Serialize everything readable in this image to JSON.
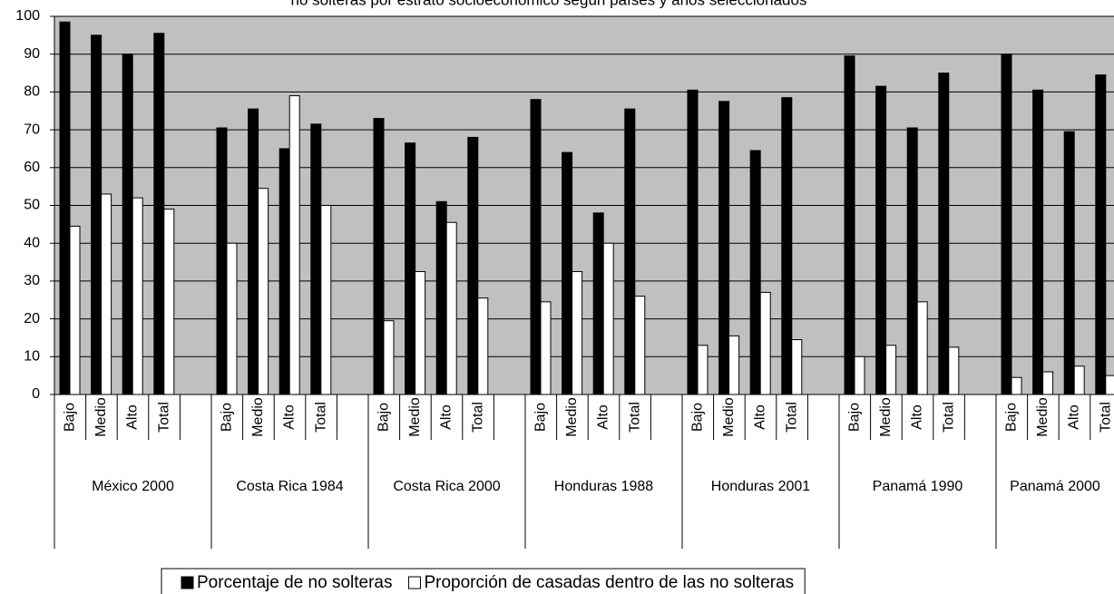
{
  "chart_data": {
    "type": "bar",
    "title": "no solteras por estrato socioeconómico según países y años seleccionados",
    "groups": [
      "México 2000",
      "Costa Rica 1984",
      "Costa Rica 2000",
      "Honduras 1988",
      "Honduras 2001",
      "Panamá 1990",
      "Panamá 2000"
    ],
    "categories": [
      "Bajo",
      "Medio",
      "Alto",
      "Total",
      null,
      "Bajo",
      "Medio",
      "Alto",
      "Total",
      null,
      "Bajo",
      "Medio",
      "Alto",
      "Total",
      null,
      "Bajo",
      "Medio",
      "Alto",
      "Total",
      null,
      "Bajo",
      "Medio",
      "Alto",
      "Total",
      null,
      "Bajo",
      "Medio",
      "Alto",
      "Total",
      null,
      "Bajo",
      "Medio",
      "Alto",
      "Total",
      null
    ],
    "series": [
      {
        "name": "Porcentaje de no solteras",
        "color": "#000000",
        "values": [
          98.5,
          95,
          90,
          95.5,
          null,
          70.5,
          75.5,
          65,
          71.5,
          null,
          73,
          66.5,
          51,
          68,
          null,
          78,
          64,
          48,
          75.5,
          null,
          80.5,
          77.5,
          64.5,
          78.5,
          null,
          89.5,
          81.5,
          70.5,
          85,
          null,
          90,
          80.5,
          69.5,
          84.5,
          null
        ]
      },
      {
        "name": "Proporción de casadas dentro de las no solteras",
        "color": "#ffffff",
        "values": [
          44.5,
          53,
          52,
          49,
          null,
          40,
          54.5,
          79,
          50,
          null,
          19.5,
          32.5,
          45.5,
          25.5,
          null,
          24.5,
          32.5,
          40,
          26,
          null,
          13,
          15.5,
          27,
          14.5,
          null,
          10,
          13,
          24.5,
          12.5,
          null,
          4.5,
          6,
          7.5,
          5,
          null
        ]
      }
    ],
    "ylim": [
      0,
      100
    ],
    "yticks": [
      0,
      10,
      20,
      30,
      40,
      50,
      60,
      70,
      80,
      90,
      100
    ],
    "grid": true,
    "plot_background": "#c0c0c0",
    "legend": "bottom"
  }
}
